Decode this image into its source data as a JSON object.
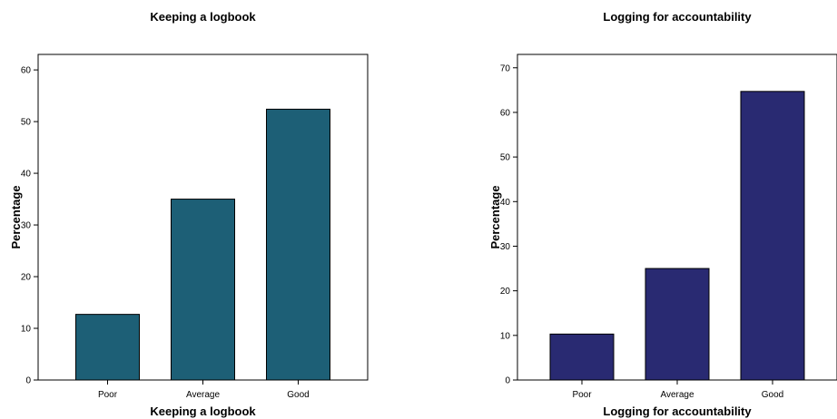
{
  "chart_data": [
    {
      "type": "bar",
      "title": "Keeping a logbook",
      "xlabel": "Keeping a logbook",
      "ylabel": "Percentage",
      "categories": [
        "Poor",
        "Average",
        "Good"
      ],
      "values": [
        12.7,
        35.0,
        52.4
      ],
      "ylim": [
        0,
        63
      ],
      "yticks": [
        0,
        10,
        20,
        30,
        40,
        50,
        60
      ],
      "bar_color": "#1d5f76",
      "grid": false,
      "legend": "none"
    },
    {
      "type": "bar",
      "title": "Logging for accountability",
      "xlabel": "Logging for accountability",
      "ylabel": "Percentage",
      "categories": [
        "Poor",
        "Average",
        "Good"
      ],
      "values": [
        10.3,
        25.0,
        64.7
      ],
      "ylim": [
        0,
        73
      ],
      "yticks": [
        0,
        10,
        20,
        30,
        40,
        50,
        60,
        70
      ],
      "bar_color": "#292a72",
      "grid": false,
      "legend": "none"
    }
  ]
}
